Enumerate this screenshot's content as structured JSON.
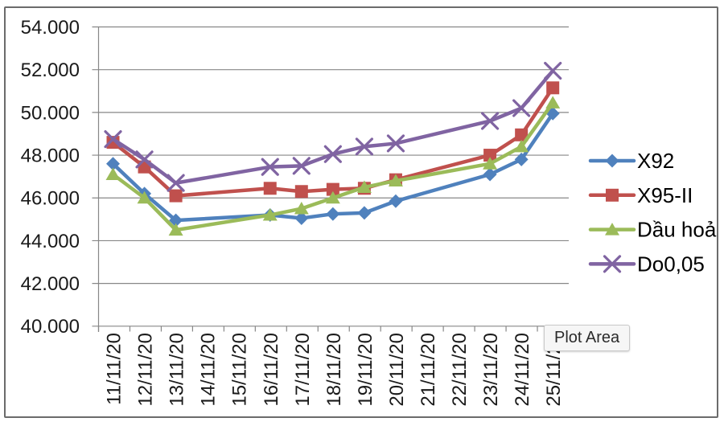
{
  "window": {
    "background": "#ffffff",
    "border_color": "#6b6b6b"
  },
  "tooltip": {
    "label": "Plot Area"
  },
  "chart_data": {
    "type": "line",
    "title": "",
    "xlabel": "",
    "ylabel": "",
    "categories": [
      "11/11/20",
      "12/11/20",
      "13/11/20",
      "14/11/20",
      "15/11/20",
      "16/11/20",
      "17/11/20",
      "18/11/20",
      "19/11/20",
      "20/11/20",
      "21/11/20",
      "22/11/20",
      "23/11/20",
      "24/11/20",
      "25/11/20"
    ],
    "ylim": [
      40000,
      54000
    ],
    "ytick_step": 2000,
    "ytick_labels": [
      "40.000",
      "42.000",
      "44.000",
      "46.000",
      "48.000",
      "50.000",
      "52.000",
      "54.000"
    ],
    "grid": true,
    "legend_position": "right",
    "gridline_color": "#878787",
    "axis_text_color": "#1a1a1a",
    "series": [
      {
        "name": "X92",
        "color": "#4F81BD",
        "marker": "diamond",
        "values": [
          47600,
          46200,
          44950,
          null,
          null,
          45200,
          45050,
          45250,
          45300,
          45850,
          null,
          null,
          47100,
          47800,
          49950
        ]
      },
      {
        "name": "X95-II",
        "color": "#C0504D",
        "marker": "square",
        "values": [
          48600,
          47450,
          46100,
          null,
          null,
          46450,
          46300,
          46400,
          46450,
          46850,
          null,
          null,
          48000,
          48950,
          51150
        ]
      },
      {
        "name": "Dầu hoả",
        "color": "#9BBB59",
        "marker": "triangle",
        "values": [
          47100,
          46000,
          44500,
          null,
          null,
          45200,
          45500,
          46000,
          46500,
          46800,
          null,
          null,
          47600,
          48400,
          50450
        ]
      },
      {
        "name": "Do0,05",
        "color": "#8064A2",
        "marker": "x",
        "values": [
          48750,
          47800,
          46700,
          null,
          null,
          47450,
          47500,
          48050,
          48400,
          48550,
          null,
          null,
          49600,
          50200,
          51950
        ]
      }
    ]
  }
}
